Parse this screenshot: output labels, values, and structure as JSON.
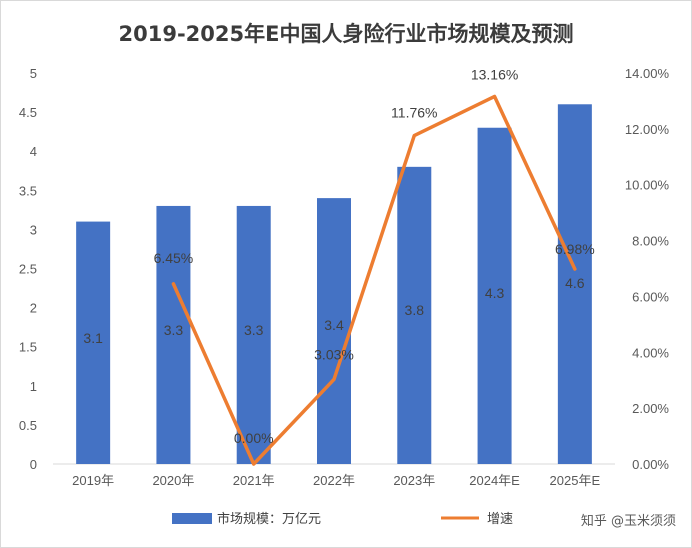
{
  "chart_data": {
    "type": "bar",
    "title": "2019-2025年E中国人身险行业市场规模及预测",
    "categories": [
      "2019年",
      "2020年",
      "2021年",
      "2022年",
      "2023年",
      "2024年E",
      "2025年E"
    ],
    "series": [
      {
        "name": "市场规模：万亿元",
        "type": "bar",
        "axis": "left",
        "color": "#4472C4",
        "values": [
          3.1,
          3.3,
          3.3,
          3.4,
          3.8,
          4.3,
          4.6
        ],
        "labels": [
          "3.1",
          "3.3",
          "3.3",
          "3.4",
          "3.8",
          "4.3",
          "4.6"
        ]
      },
      {
        "name": "增速",
        "type": "line",
        "axis": "right",
        "color": "#ED7D31",
        "values": [
          null,
          6.45,
          0.0,
          3.03,
          11.76,
          13.16,
          6.98
        ],
        "labels": [
          "",
          "6.45%",
          "0.00%",
          "3.03%",
          "11.76%",
          "13.16%",
          "6.98%"
        ]
      }
    ],
    "y_left": {
      "min": 0,
      "max": 5,
      "ticks": [
        "0",
        "0.5",
        "1",
        "1.5",
        "2",
        "2.5",
        "3",
        "3.5",
        "4",
        "4.5",
        "5"
      ]
    },
    "y_right": {
      "min": 0,
      "max": 14,
      "ticks": [
        "0.00%",
        "2.00%",
        "4.00%",
        "6.00%",
        "8.00%",
        "10.00%",
        "12.00%",
        "14.00%"
      ]
    },
    "grid": false,
    "legend_position": "bottom"
  },
  "legend": {
    "bar_label": "市场规模：万亿元",
    "line_label": "增速"
  },
  "watermark": {
    "source_text": "知乎 @玉米须须"
  }
}
